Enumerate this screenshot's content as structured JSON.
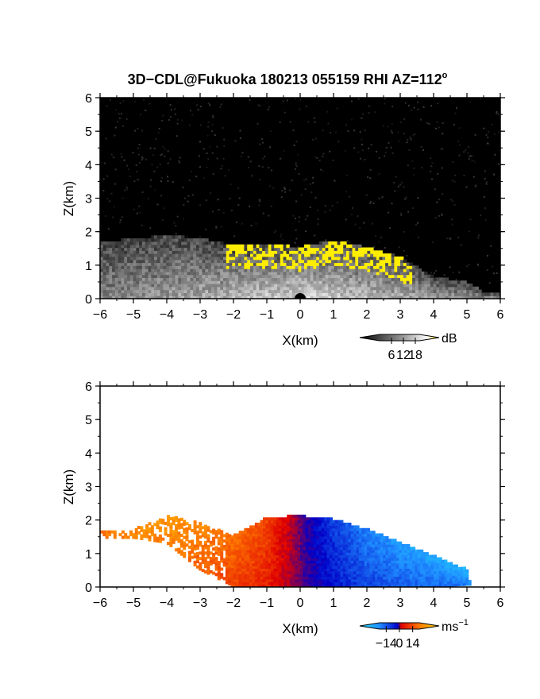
{
  "figure": {
    "title_main": "3D−CDL@Fukuoka 180213 055159 RHI AZ=112",
    "title_sup": "o"
  },
  "chart_data": [
    {
      "type": "heatmap",
      "panel": "reflectivity",
      "xlabel": "X(km)",
      "ylabel": "Z(km)",
      "xlim": [
        -6,
        6
      ],
      "ylim": [
        0,
        6
      ],
      "x_ticks": [
        -6,
        -5,
        -4,
        -3,
        -2,
        -1,
        0,
        1,
        2,
        3,
        4,
        5,
        6
      ],
      "y_ticks": [
        0,
        1,
        2,
        3,
        4,
        5,
        6
      ],
      "x_tick_labels": [
        "−6",
        "−5",
        "−4",
        "−3",
        "−2",
        "−1",
        "0",
        "1",
        "2",
        "3",
        "4",
        "5",
        "6"
      ],
      "y_tick_labels": [
        "0",
        "1",
        "2",
        "3",
        "4",
        "5",
        "6"
      ],
      "colorbar": {
        "unit": "dB",
        "ticks": [
          6,
          12,
          18
        ],
        "tick_labels": [
          "6",
          "12",
          "18"
        ],
        "range": [
          0,
          20
        ],
        "colors": [
          "#000000",
          "#ffffff",
          "#ffee00"
        ]
      },
      "colormap": {
        "background": "#000000",
        "low": "#3a3a3a",
        "high": "#ffffff",
        "max": "#ffee00"
      },
      "echo_profile": {
        "x": [
          -6.0,
          -5.0,
          -4.0,
          -3.0,
          -2.0,
          -1.0,
          0.0,
          1.0,
          2.0,
          3.0,
          4.0,
          5.0,
          5.6
        ],
        "top_z": [
          1.65,
          1.75,
          1.85,
          1.75,
          1.55,
          1.6,
          1.5,
          1.7,
          1.5,
          1.2,
          0.6,
          0.45,
          0.1
        ]
      },
      "strong_echo_x_range": [
        -2.3,
        3.3
      ],
      "strong_echo_z_range": [
        0.4,
        1.95
      ]
    },
    {
      "type": "heatmap",
      "panel": "doppler_velocity",
      "xlabel": "X(km)",
      "ylabel": "Z(km)",
      "xlim": [
        -6,
        6
      ],
      "ylim": [
        0,
        6
      ],
      "x_ticks": [
        -6,
        -5,
        -4,
        -3,
        -2,
        -1,
        0,
        1,
        2,
        3,
        4,
        5,
        6
      ],
      "y_ticks": [
        0,
        1,
        2,
        3,
        4,
        5,
        6
      ],
      "x_tick_labels": [
        "−6",
        "−5",
        "−4",
        "−3",
        "−2",
        "−1",
        "0",
        "1",
        "2",
        "3",
        "4",
        "5",
        "6"
      ],
      "y_tick_labels": [
        "0",
        "1",
        "2",
        "3",
        "4",
        "5",
        "6"
      ],
      "colorbar": {
        "unit": "ms",
        "unit_sup": "−1",
        "ticks": [
          -14,
          0,
          14
        ],
        "tick_labels": [
          "−14",
          "0",
          "14"
        ],
        "range": [
          -21,
          21
        ],
        "colors": [
          "#22e6ff",
          "#1f8cff",
          "#0000c8",
          "#e00000",
          "#ff7a00",
          "#ffe000"
        ]
      },
      "velocity_profile": {
        "x": [
          -6.0,
          -5.0,
          -4.0,
          -3.0,
          -2.0,
          -1.0,
          -0.2,
          0.2,
          1.0,
          2.0,
          3.0,
          4.0,
          5.0
        ],
        "velocity": [
          12,
          14,
          15,
          14,
          12,
          9,
          2,
          -3,
          -8,
          -12,
          -14,
          -15,
          -16
        ]
      },
      "echo_profile": {
        "x": [
          -6.2,
          -5.0,
          -4.0,
          -3.0,
          -2.0,
          -1.0,
          0.0,
          1.0,
          2.0,
          3.0,
          4.0,
          5.0,
          5.1
        ],
        "top_z": [
          1.6,
          1.7,
          2.1,
          1.9,
          1.5,
          2.05,
          2.1,
          2.0,
          1.7,
          1.3,
          0.9,
          0.5,
          0.1
        ],
        "bottom_z": [
          1.45,
          1.45,
          1.3,
          0.5,
          0.0,
          0.0,
          0.0,
          0.0,
          0.0,
          0.0,
          0.0,
          0.05,
          0.05
        ]
      }
    }
  ]
}
